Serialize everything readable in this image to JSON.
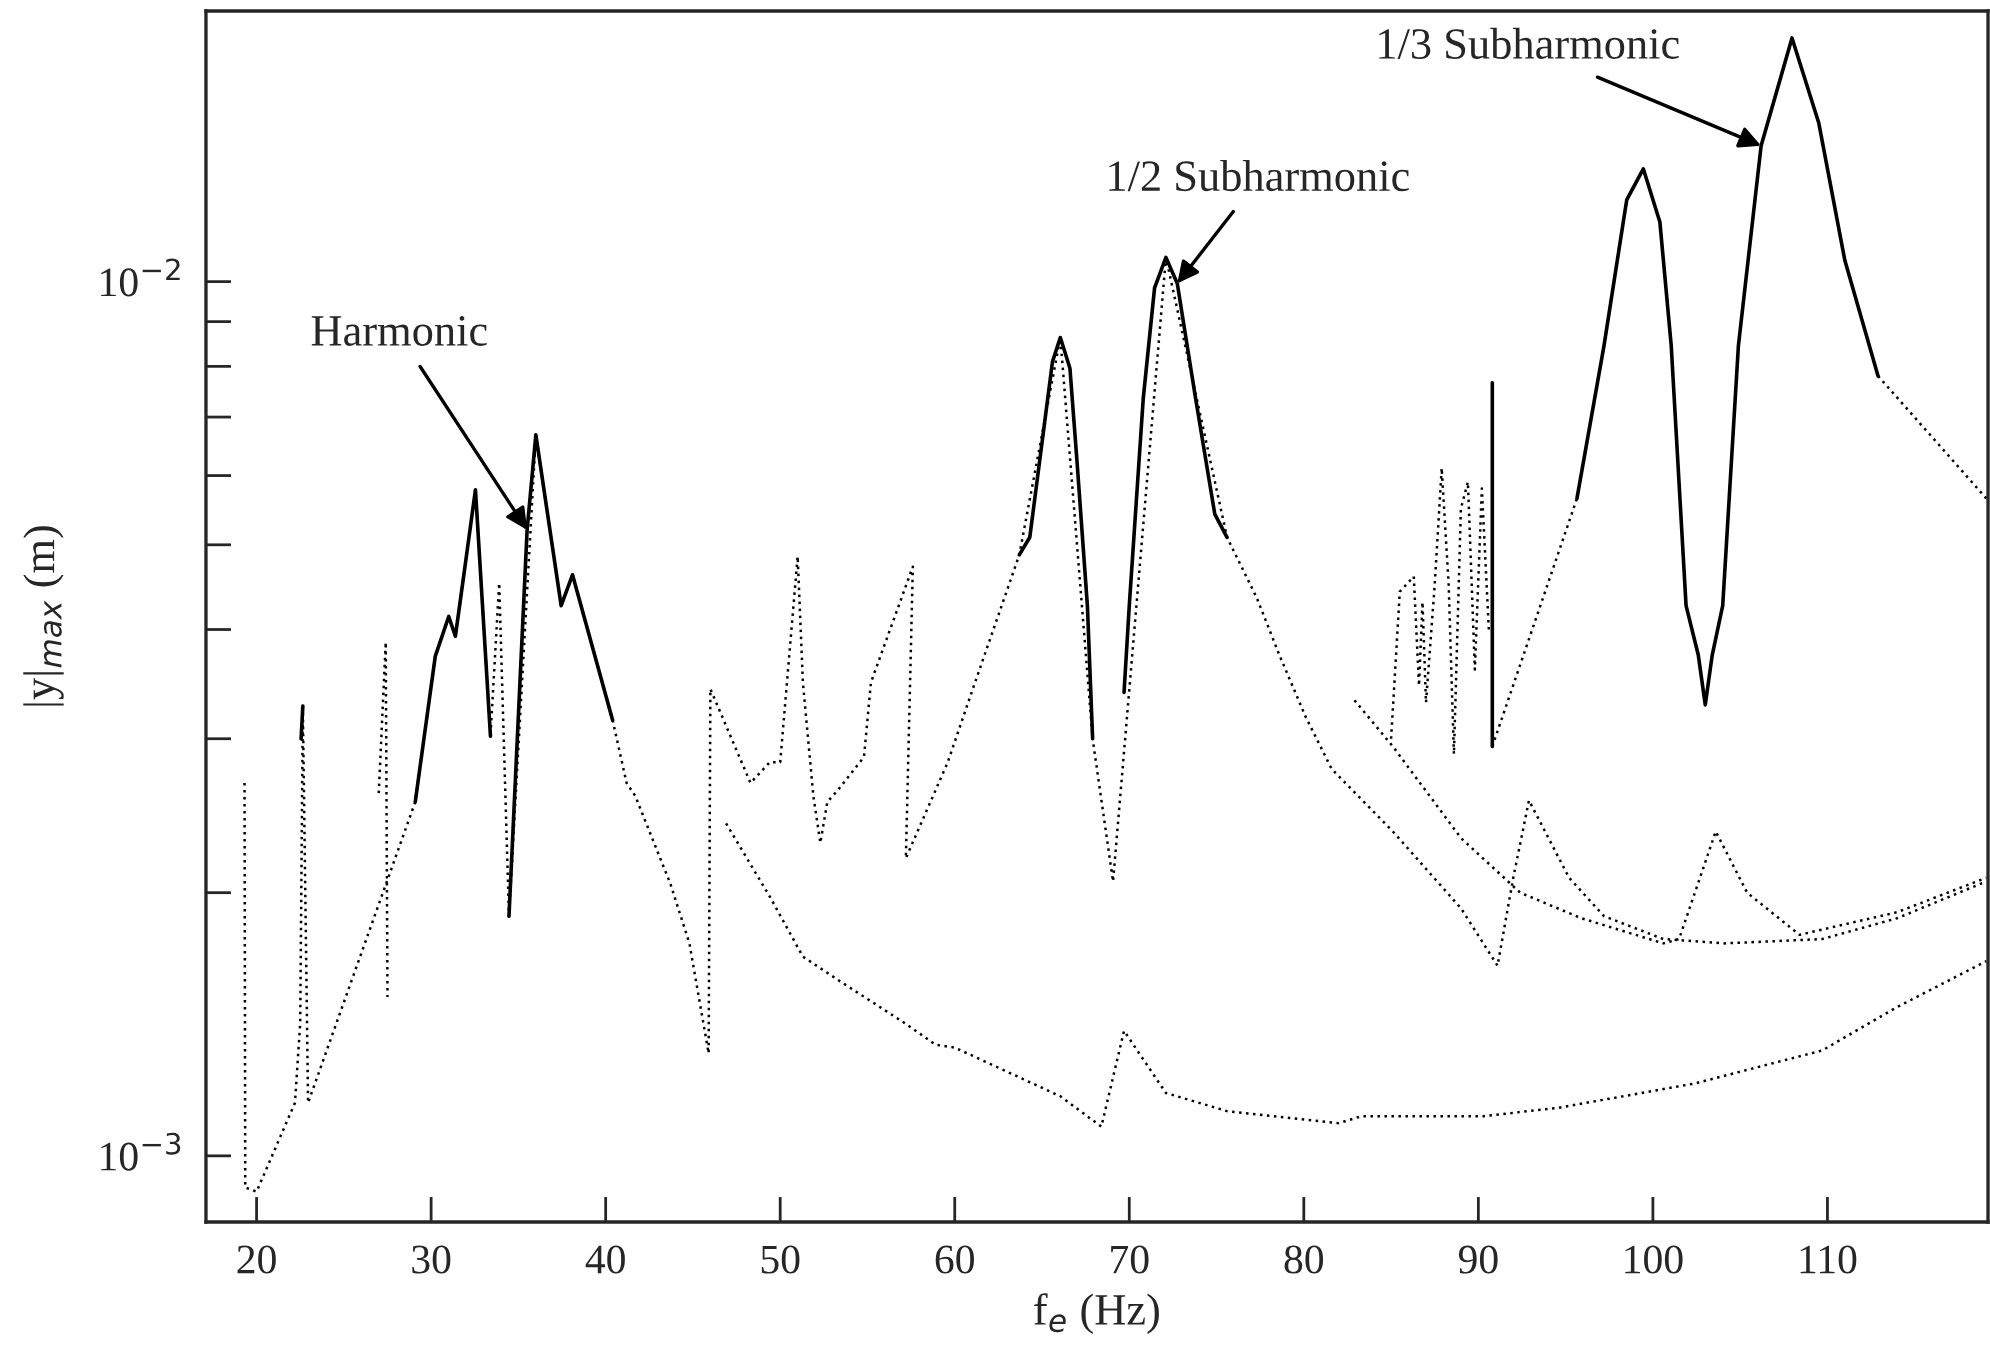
{
  "chart_data": {
    "type": "line",
    "xlabel": "f$_{e}$ (Hz)",
    "ylabel": "|y|$_{max}$ (m)",
    "log": "y",
    "xlim": [
      17.1,
      119.2
    ],
    "xticks": [
      20,
      30,
      40,
      50,
      60,
      70,
      80,
      90,
      100,
      110
    ],
    "ylim": [
      0.00084,
      0.0204
    ],
    "yticks": [
      {
        "value": 0.001,
        "label": "10$^{−3}$"
      },
      {
        "value": 0.002,
        "label": null
      },
      {
        "value": 0.003,
        "label": null
      },
      {
        "value": 0.004,
        "label": null
      },
      {
        "value": 0.005,
        "label": null
      },
      {
        "value": 0.006,
        "label": null
      },
      {
        "value": 0.007,
        "label": null
      },
      {
        "value": 0.008,
        "label": null
      },
      {
        "value": 0.009,
        "label": null
      },
      {
        "value": 0.01,
        "label": "10$^{−2}$"
      }
    ],
    "annotations": [
      {
        "text": "Harmonic",
        "x": 35.5,
        "y": 0.0052
      },
      {
        "text": "1/2 Subharmonic",
        "x": 72.75,
        "y": 0.00995
      },
      {
        "text": "1/3 Subharmonic",
        "x": 106.2,
        "y": 0.0143
      }
    ],
    "series": [
      {
        "color": "#000000",
        "line_style": "dotted",
        "x": [
          19.31,
          19.35,
          20.0,
          22.2,
          22.5,
          22.65,
          22.95,
          29.09,
          30.24,
          31.01,
          31.39,
          31.97,
          32.54,
          33.4,
          33.9,
          34.46,
          36.0,
          37.45,
          38.1,
          40.4,
          41.2,
          41.7,
          43.7,
          44.8,
          45.9,
          46.0,
          48.3,
          49.4,
          50.0,
          51.0,
          51.3,
          51.9,
          52.3,
          52.7,
          53.3,
          54.8,
          55.2,
          57.6,
          57.2,
          59.6,
          61.1,
          63.7,
          66.05,
          67.9,
          69.07,
          72.1,
          75.6,
          77.3,
          78.6,
          80.1,
          81.6,
          85.1,
          89.0,
          91.1,
          92.0,
          92.9,
          95.2,
          97.2,
          100.6,
          104.1,
          109.7,
          114.0,
          119.1
        ],
        "values": [
          0.00267,
          0.00092,
          0.00091,
          0.00115,
          0.00142,
          0.00327,
          0.00115,
          0.00254,
          0.00373,
          0.00414,
          0.00393,
          0.00477,
          0.00578,
          0.00302,
          0.00452,
          0.00188,
          0.00668,
          0.00426,
          0.00462,
          0.00315,
          0.00267,
          0.00258,
          0.00205,
          0.00175,
          0.00131,
          0.00342,
          0.00267,
          0.00282,
          0.00282,
          0.00485,
          0.00348,
          0.00258,
          0.00228,
          0.00254,
          0.00262,
          0.00286,
          0.00348,
          0.00472,
          0.00219,
          0.00282,
          0.00345,
          0.00487,
          0.00863,
          0.003,
          0.00206,
          0.01066,
          0.0051,
          0.00435,
          0.00374,
          0.00318,
          0.00277,
          0.00235,
          0.00192,
          0.00165,
          0.00208,
          0.00255,
          0.00208,
          0.00188,
          0.00177,
          0.00175,
          0.00177,
          0.00187,
          0.00206
        ]
      },
      {
        "color": "#000000",
        "line_style": "dotted",
        "x": [
          27.0,
          27.4,
          27.5
        ],
        "values": [
          0.0026,
          0.00387,
          0.00152
        ]
      },
      {
        "color": "#000000",
        "line_style": "dotted",
        "x": [
          46.9,
          49.4,
          51.3,
          53.3,
          57.1,
          58.9,
          60.0,
          66.05,
          68.4,
          69.7,
          72.1,
          75.6,
          82.0,
          83.3,
          90.25,
          94.6,
          102.4,
          109.7,
          114.0,
          119.1
        ],
        "values": [
          0.0024,
          0.00198,
          0.00169,
          0.00159,
          0.00142,
          0.00134,
          0.00133,
          0.00117,
          0.00108,
          0.00139,
          0.00118,
          0.001125,
          0.00109,
          0.00111,
          0.00111,
          0.001135,
          0.00121,
          0.00132,
          0.00148,
          0.00167
        ]
      },
      {
        "color": "#000000",
        "line_style": "dotted",
        "x": [
          82.9,
          85.1,
          89.0,
          92.4,
          95.9,
          100.6,
          101.5,
          103.6,
          105.4,
          108.4,
          114.0,
          119.1
        ],
        "values": [
          0.00332,
          0.00294,
          0.00231,
          0.002,
          0.00187,
          0.00175,
          0.00177,
          0.00235,
          0.002,
          0.00179,
          0.0019,
          0.00208
        ]
      },
      {
        "color": "#000000",
        "line_style": "dotted",
        "x": [
          85.0,
          85.5,
          86.3,
          86.6,
          86.8,
          87.0,
          87.5,
          87.9,
          88.3,
          88.6,
          89.0,
          89.4,
          89.8,
          90.2,
          90.6
        ],
        "values": [
          0.003,
          0.00442,
          0.0046,
          0.00345,
          0.0043,
          0.0033,
          0.0045,
          0.00612,
          0.0045,
          0.00288,
          0.0055,
          0.0059,
          0.0036,
          0.0058,
          0.004
        ]
      },
      {
        "color": "#000000",
        "line_style": "dotted",
        "x": [
          90.8,
          95.65
        ],
        "values": [
          0.00294,
          0.00565
        ]
      },
      {
        "color": "#000000",
        "line_style": "dotted",
        "x": [
          112.9,
          119.1
        ],
        "values": [
          0.0078,
          0.00565
        ]
      },
      {
        "color": "#000000",
        "line_style": "solid",
        "x": [
          22.55,
          22.65
        ],
        "values": [
          0.003,
          0.00327
        ]
      },
      {
        "color": "#000000",
        "line_style": "solid",
        "x": [
          29.09,
          30.24,
          31.01,
          31.39,
          31.97,
          32.54,
          33.4
        ],
        "values": [
          0.00254,
          0.00373,
          0.00414,
          0.00393,
          0.00477,
          0.00578,
          0.00302
        ]
      },
      {
        "color": "#000000",
        "line_style": "solid",
        "x": [
          34.46,
          35.5,
          36.0,
          37.45,
          38.1,
          40.4
        ],
        "values": [
          0.00188,
          0.0052,
          0.00668,
          0.00426,
          0.00462,
          0.00315
        ]
      },
      {
        "color": "#000000",
        "line_style": "solid",
        "x": [
          63.7,
          64.3,
          65.1,
          65.6,
          66.05,
          66.6,
          67.0,
          67.6,
          67.9
        ],
        "values": [
          0.00487,
          0.0051,
          0.00678,
          0.0081,
          0.00863,
          0.00796,
          0.00625,
          0.00426,
          0.003
        ]
      },
      {
        "color": "#000000",
        "line_style": "solid",
        "x": [
          69.7,
          70.0,
          70.8,
          71.45,
          72.1,
          72.75,
          73.8,
          74.9,
          75.6
        ],
        "values": [
          0.00339,
          0.00426,
          0.00735,
          0.00984,
          0.01066,
          0.00995,
          0.00735,
          0.00542,
          0.0051
        ]
      },
      {
        "color": "#000000",
        "line_style": "solid",
        "x": [
          90.8,
          90.8
        ],
        "values": [
          0.00766,
          0.00294
        ]
      },
      {
        "color": "#000000",
        "line_style": "solid",
        "x": [
          95.65,
          97.2,
          98.5,
          99.45,
          100.4,
          101.05,
          101.9,
          102.6,
          103.0,
          103.4,
          104.0,
          104.9,
          106.2,
          107.97,
          109.5,
          111.0,
          112.9
        ],
        "values": [
          0.00565,
          0.00845,
          0.0124,
          0.01346,
          0.0117,
          0.00845,
          0.00426,
          0.00374,
          0.00328,
          0.00374,
          0.00426,
          0.00845,
          0.0143,
          0.019,
          0.0152,
          0.01057,
          0.0078
        ]
      }
    ]
  }
}
